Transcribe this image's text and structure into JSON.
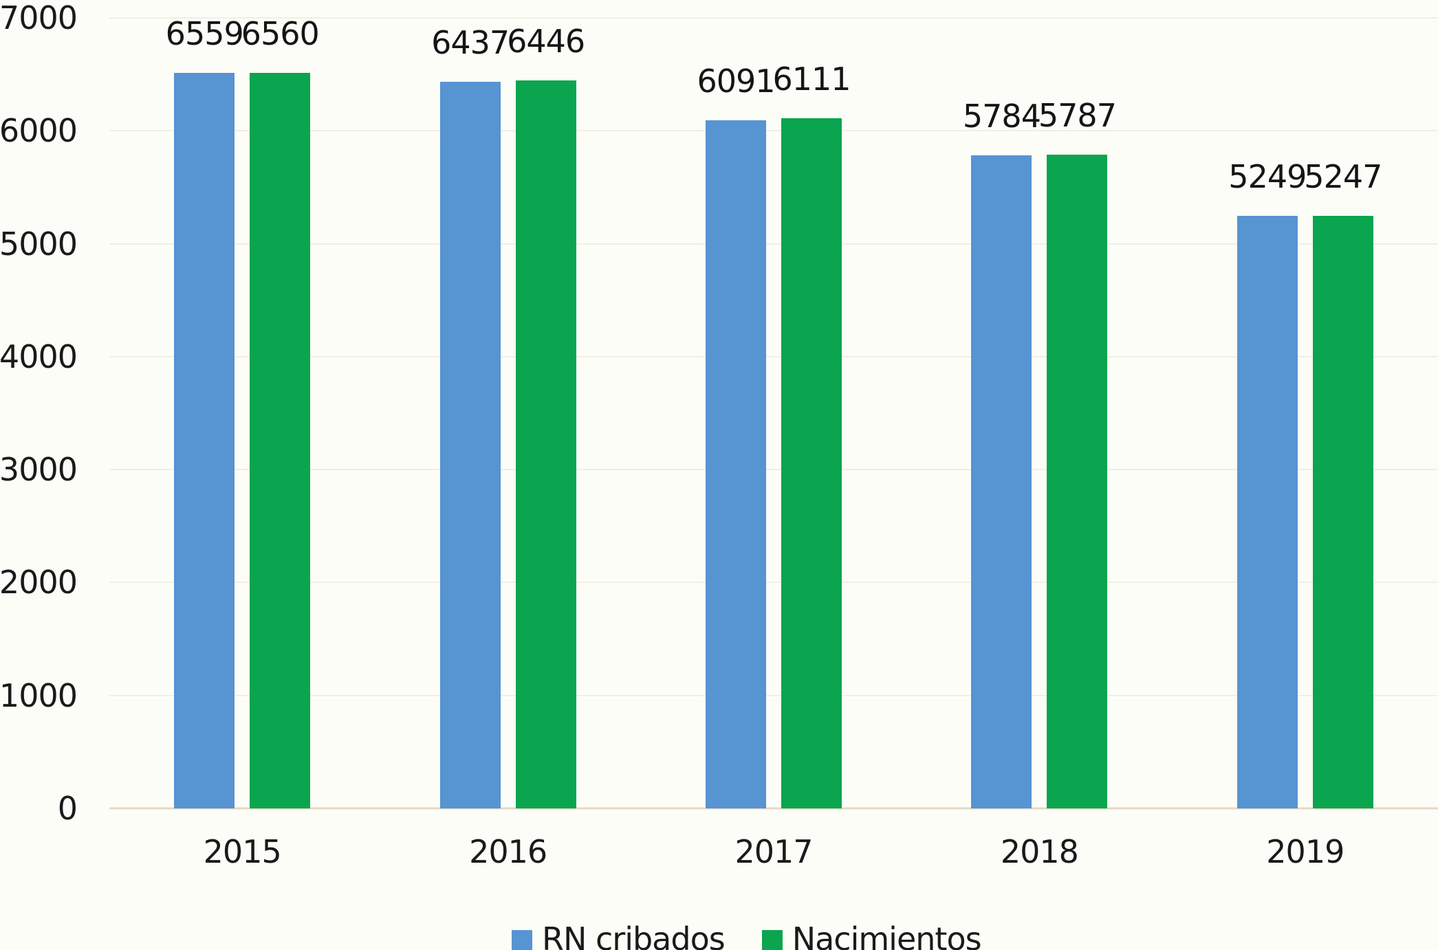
{
  "chart_data": {
    "type": "bar",
    "categories": [
      "2015",
      "2016",
      "2017",
      "2018",
      "2019"
    ],
    "series": [
      {
        "name": "RN cribados",
        "color": "#5694d2",
        "values": [
          6559,
          6437,
          6091,
          5784,
          5249
        ]
      },
      {
        "name": "Nacimientos",
        "color": "#0aa54e",
        "values": [
          6560,
          6446,
          6111,
          5787,
          5247
        ]
      }
    ],
    "ylim": [
      0,
      7000
    ],
    "yticks": [
      0,
      1000,
      2000,
      3000,
      4000,
      5000,
      6000,
      7000
    ],
    "grid": "horizontal-faint",
    "legend_position": "bottom-center",
    "data_labels": true,
    "xlabel": "",
    "ylabel": ""
  },
  "colors": {
    "background": "#fdfdf8",
    "text": "#1a1a1a",
    "gridline": "#e8dcc4",
    "baseline": "#e4d4ba"
  }
}
